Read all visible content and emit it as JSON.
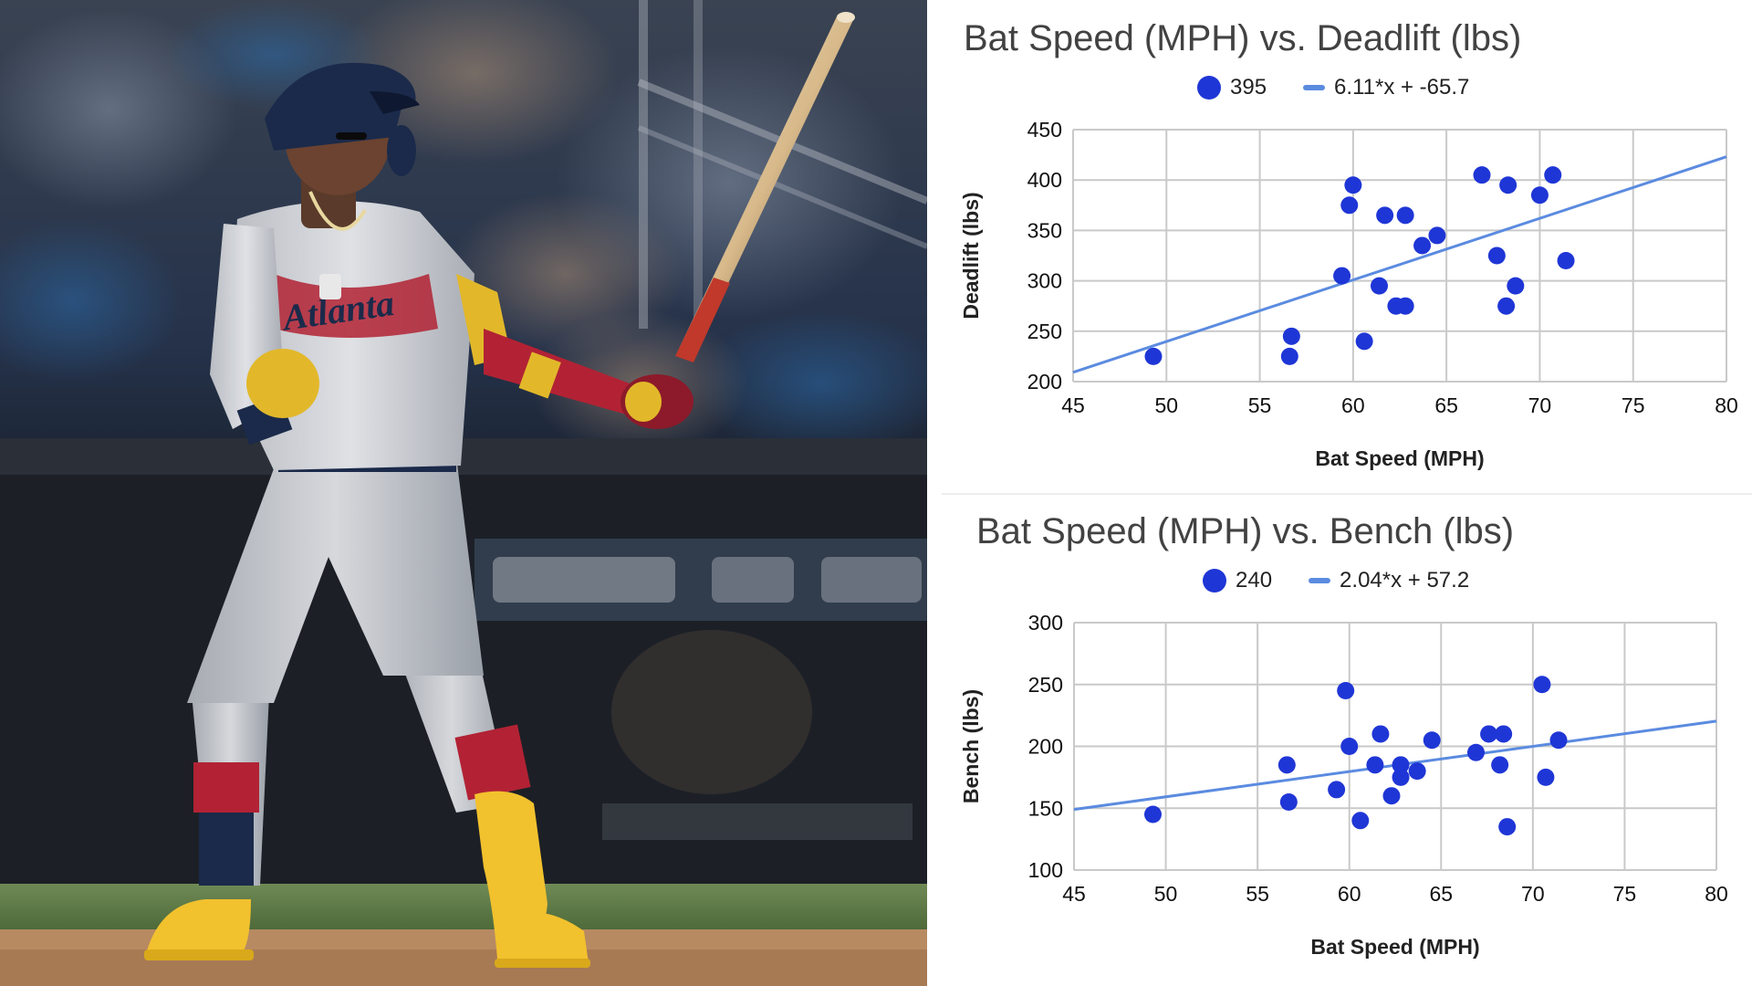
{
  "chart_data": [
    {
      "type": "scatter",
      "title": "Bat Speed (MPH) vs. Deadlift (lbs)",
      "xlabel": "Bat Speed (MPH)",
      "ylabel": "Deadlift (lbs)",
      "xlim": [
        45,
        80
      ],
      "ylim": [
        200,
        450
      ],
      "xticks": [
        "45",
        "50",
        "55",
        "60",
        "65",
        "70",
        "75",
        "80"
      ],
      "yticks": [
        "200",
        "250",
        "300",
        "350",
        "400",
        "450"
      ],
      "grid": true,
      "legend_position": "top",
      "series": [
        {
          "name": "395",
          "color": "#1f36d6",
          "points": [
            [
              49.3,
              225
            ],
            [
              56.6,
              225
            ],
            [
              56.7,
              245
            ],
            [
              59.4,
              305
            ],
            [
              59.8,
              375
            ],
            [
              60.0,
              395
            ],
            [
              60.6,
              240
            ],
            [
              61.4,
              295
            ],
            [
              61.7,
              365
            ],
            [
              62.3,
              275
            ],
            [
              62.8,
              275
            ],
            [
              62.8,
              365
            ],
            [
              63.7,
              335
            ],
            [
              64.5,
              345
            ],
            [
              66.9,
              405
            ],
            [
              67.7,
              325
            ],
            [
              68.2,
              275
            ],
            [
              68.3,
              395
            ],
            [
              68.7,
              295
            ],
            [
              70.0,
              385
            ],
            [
              70.7,
              405
            ],
            [
              71.4,
              320
            ]
          ]
        }
      ],
      "trendline": {
        "name": "6.11*x + -65.7",
        "slope": 6.11,
        "intercept": -65.7,
        "color": "#5b8be0"
      }
    },
    {
      "type": "scatter",
      "title": "Bat Speed (MPH) vs. Bench (lbs)",
      "xlabel": "Bat Speed (MPH)",
      "ylabel": "Bench (lbs)",
      "xlim": [
        45,
        80
      ],
      "ylim": [
        100,
        300
      ],
      "xticks": [
        "45",
        "50",
        "55",
        "60",
        "65",
        "70",
        "75",
        "80"
      ],
      "yticks": [
        "100",
        "150",
        "200",
        "250",
        "300"
      ],
      "grid": true,
      "legend_position": "top",
      "series": [
        {
          "name": "240",
          "color": "#1f36d6",
          "points": [
            [
              49.3,
              145
            ],
            [
              56.6,
              185
            ],
            [
              56.7,
              155
            ],
            [
              59.3,
              165
            ],
            [
              59.8,
              245
            ],
            [
              60.0,
              200
            ],
            [
              60.6,
              140
            ],
            [
              61.4,
              185
            ],
            [
              61.7,
              210
            ],
            [
              62.3,
              160
            ],
            [
              62.8,
              185
            ],
            [
              62.8,
              175
            ],
            [
              63.7,
              180
            ],
            [
              64.5,
              205
            ],
            [
              66.9,
              195
            ],
            [
              67.6,
              210
            ],
            [
              68.2,
              185
            ],
            [
              68.4,
              210
            ],
            [
              68.6,
              135
            ],
            [
              70.5,
              250
            ],
            [
              70.7,
              175
            ],
            [
              71.4,
              205
            ]
          ]
        }
      ],
      "trendline": {
        "name": "2.04*x + 57.2",
        "slope": 2.04,
        "intercept": 57.2,
        "color": "#5b8be0"
      }
    }
  ],
  "colors": {
    "point": "#1f36d6",
    "trendline": "#5b8be0",
    "grid": "#c9c9c9",
    "title": "#424242"
  }
}
